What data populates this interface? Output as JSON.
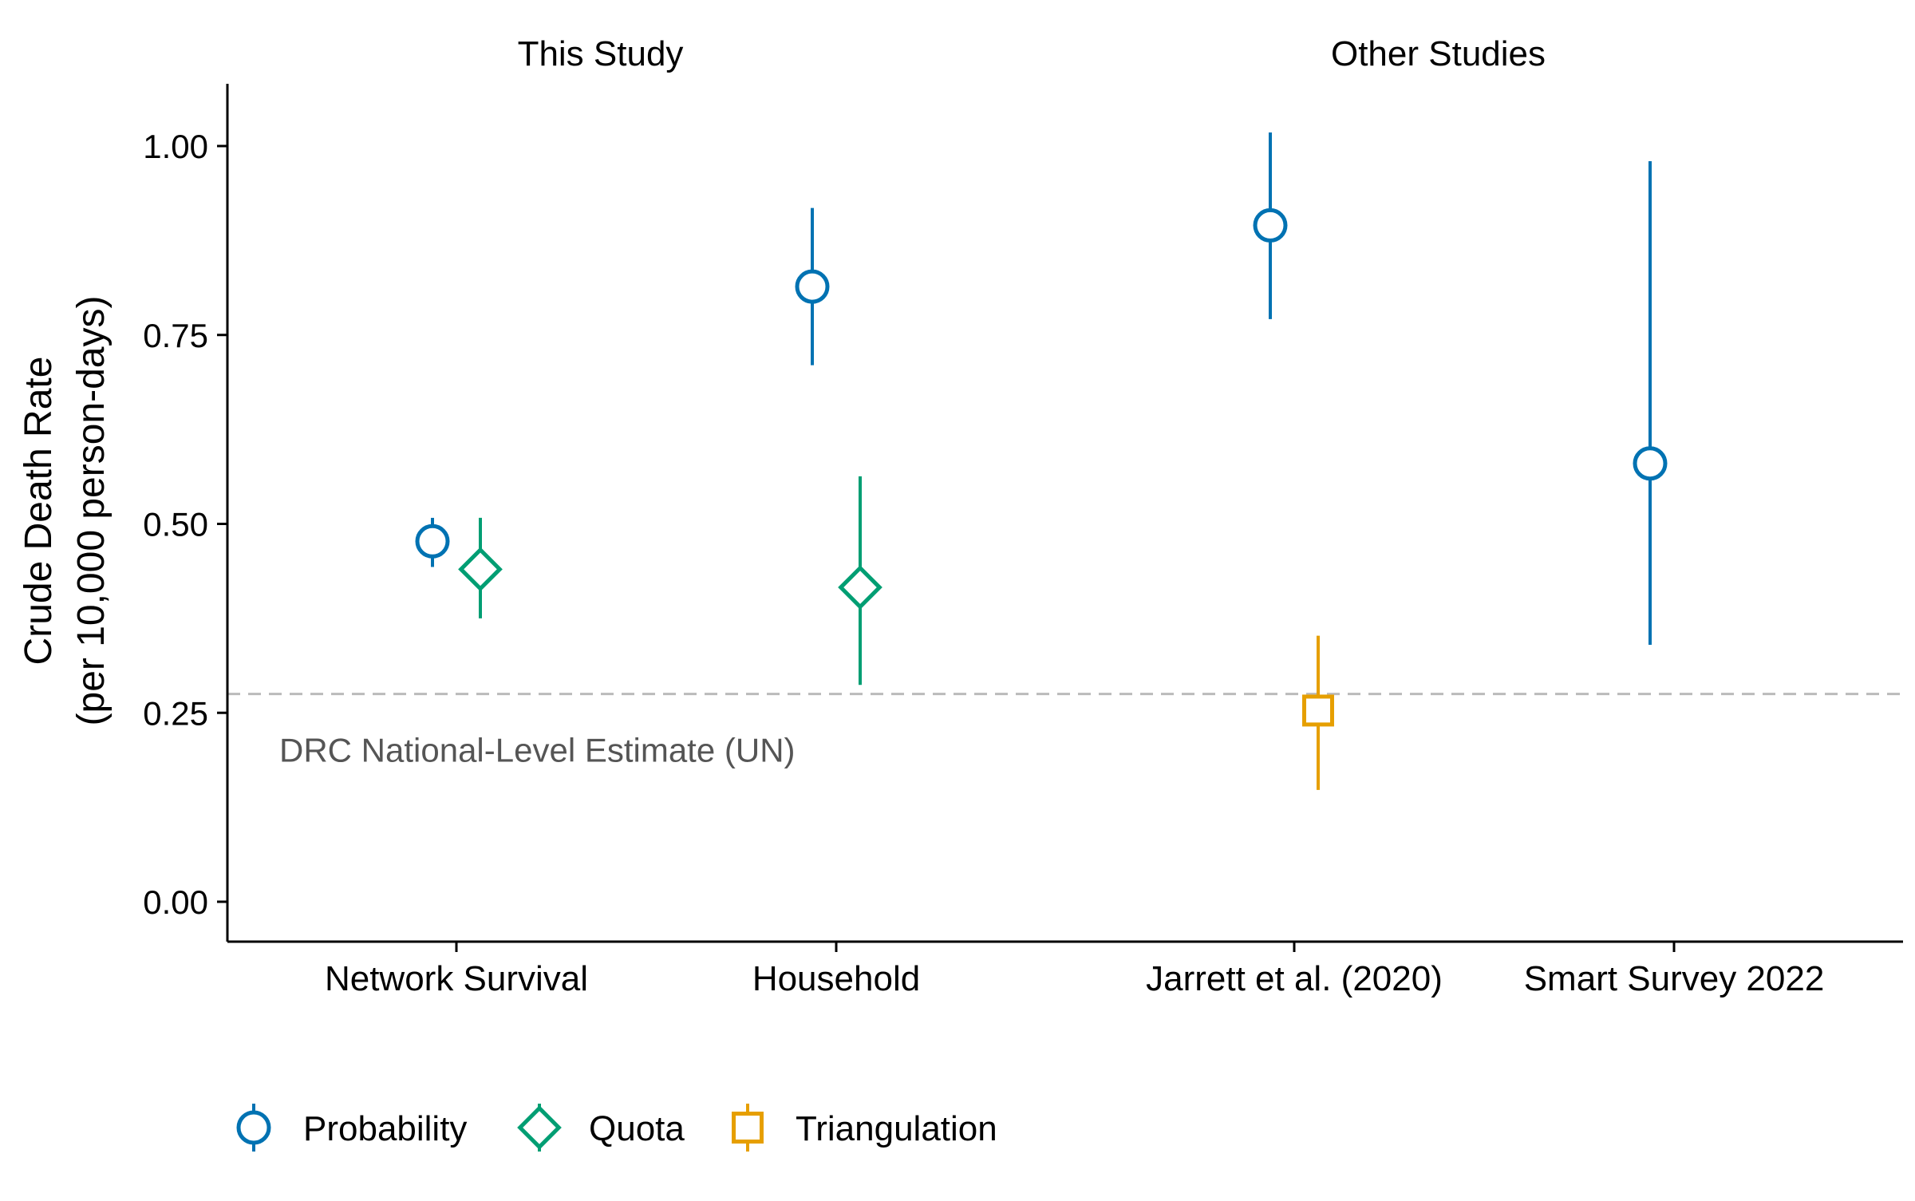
{
  "chart_data": {
    "type": "scatter",
    "subtype": "point-range (estimate with interval), faceted",
    "ylabel_line1": "Crude Death Rate",
    "ylabel_line2": "(per 10,000 person-days)",
    "ylim": [
      -0.05,
      1.08
    ],
    "yticks": [
      "0.00",
      "0.25",
      "0.50",
      "0.75",
      "1.00"
    ],
    "ytick_values": [
      0,
      0.25,
      0.5,
      0.75,
      1.0
    ],
    "grid": false,
    "legend_position": "bottom-left",
    "panels": [
      {
        "title": "This Study",
        "categories": [
          "Network Survival",
          "Household"
        ],
        "points": [
          {
            "category": "Network Survival",
            "series": "Probability",
            "y": 0.477,
            "low": 0.443,
            "high": 0.508
          },
          {
            "category": "Network Survival",
            "series": "Quota",
            "y": 0.44,
            "low": 0.375,
            "high": 0.508
          },
          {
            "category": "Household",
            "series": "Probability",
            "y": 0.814,
            "low": 0.71,
            "high": 0.918
          },
          {
            "category": "Household",
            "series": "Quota",
            "y": 0.416,
            "low": 0.287,
            "high": 0.563
          }
        ]
      },
      {
        "title": "Other Studies",
        "categories": [
          "Jarrett et al. (2020)",
          "Smart Survey 2022"
        ],
        "points": [
          {
            "category": "Jarrett et al. (2020)",
            "series": "Probability",
            "y": 0.895,
            "low": 0.771,
            "high": 1.018
          },
          {
            "category": "Jarrett et al. (2020)",
            "series": "Triangulation",
            "y": 0.253,
            "low": 0.148,
            "high": 0.352
          },
          {
            "category": "Smart Survey 2022",
            "series": "Probability",
            "y": 0.58,
            "low": 0.34,
            "high": 0.98
          }
        ]
      }
    ],
    "reference_line": {
      "y": 0.275,
      "label": "DRC National-Level Estimate (UN)",
      "color": "#bbbbbb",
      "style": "dashed"
    },
    "series": [
      {
        "name": "Probability",
        "color": "#0072B2",
        "marker": "circle"
      },
      {
        "name": "Quota",
        "color": "#009E73",
        "marker": "diamond"
      },
      {
        "name": "Triangulation",
        "color": "#E69F00",
        "marker": "square"
      }
    ]
  }
}
